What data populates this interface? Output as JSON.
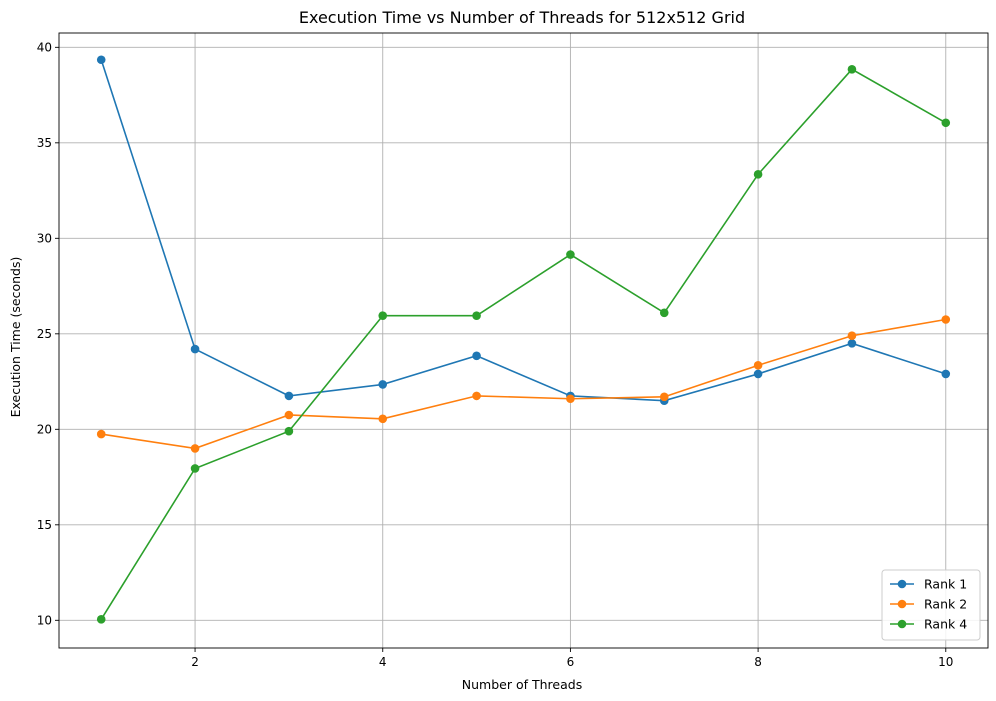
{
  "chart_data": {
    "type": "line",
    "title": "Execution Time vs Number of Threads for 512x512 Grid",
    "xlabel": "Number of Threads",
    "ylabel": "Execution Time (seconds)",
    "x": [
      1,
      2,
      3,
      4,
      5,
      6,
      7,
      8,
      9,
      10
    ],
    "xlim": [
      0.55,
      10.45
    ],
    "ylim": [
      8.55,
      40.75
    ],
    "xticks": [
      2,
      4,
      6,
      8,
      10
    ],
    "yticks": [
      10,
      15,
      20,
      25,
      30,
      35,
      40
    ],
    "grid": true,
    "legend_position": "lower-right",
    "series": [
      {
        "name": "Rank 1",
        "color": "#1f77b4",
        "values": [
          39.35,
          24.2,
          21.75,
          22.35,
          23.85,
          21.75,
          21.5,
          22.9,
          24.5,
          22.9
        ]
      },
      {
        "name": "Rank 2",
        "color": "#ff7f0e",
        "values": [
          19.75,
          19.0,
          20.75,
          20.55,
          21.75,
          21.6,
          21.7,
          23.35,
          24.9,
          25.75
        ]
      },
      {
        "name": "Rank 4",
        "color": "#2ca02c",
        "values": [
          10.05,
          17.95,
          19.9,
          25.95,
          25.95,
          29.15,
          26.1,
          33.35,
          38.85,
          36.05
        ]
      }
    ]
  }
}
